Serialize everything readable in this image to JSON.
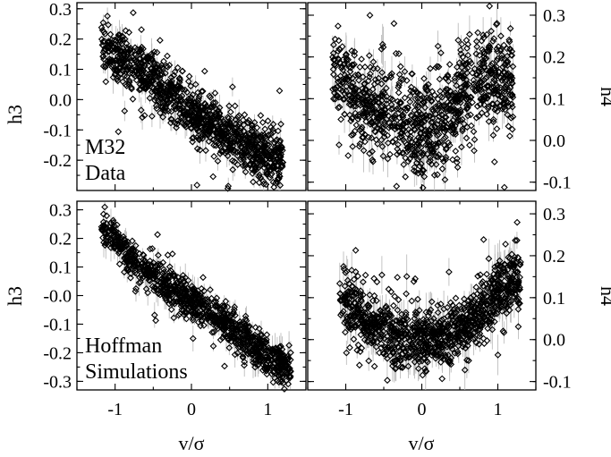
{
  "chart_data": [
    {
      "type": "scatter",
      "panel": "top-left",
      "xlim": [
        -1.5,
        1.5
      ],
      "ylim": [
        -0.3,
        0.32
      ],
      "ylabel": "h3",
      "xlabel": "",
      "yticks": [
        "0.3",
        "0.2",
        "0.1",
        "0.0",
        "-0.1",
        "-0.2"
      ],
      "xticks": [],
      "annotation": [
        "M32",
        "Data"
      ],
      "series": [
        {
          "trend": "h3 decreases linearly with v/sigma",
          "points": [
            [
              -1.1,
              0.17
            ],
            [
              -1.0,
              0.15
            ],
            [
              -0.9,
              0.13
            ],
            [
              -0.8,
              0.11
            ],
            [
              -0.7,
              0.1
            ],
            [
              -0.6,
              0.08
            ],
            [
              -0.5,
              0.06
            ],
            [
              -0.4,
              0.04
            ],
            [
              -0.3,
              0.02
            ],
            [
              -0.2,
              0.0
            ],
            [
              -0.1,
              -0.02
            ],
            [
              0.0,
              -0.04
            ],
            [
              0.1,
              -0.06
            ],
            [
              0.2,
              -0.08
            ],
            [
              0.3,
              -0.09
            ],
            [
              0.4,
              -0.11
            ],
            [
              0.5,
              -0.12
            ],
            [
              0.6,
              -0.13
            ],
            [
              0.7,
              -0.15
            ],
            [
              0.8,
              -0.16
            ],
            [
              0.9,
              -0.17
            ],
            [
              1.0,
              -0.18
            ],
            [
              1.1,
              -0.19
            ]
          ]
        }
      ]
    },
    {
      "type": "scatter",
      "panel": "top-right",
      "xlim": [
        -1.5,
        1.5
      ],
      "ylim": [
        -0.12,
        0.33
      ],
      "ylabel": "h4",
      "xlabel": "",
      "yticks": [
        "0.3",
        "0.2",
        "0.1",
        "0.0",
        "-0.1"
      ],
      "xticks": [],
      "series": [
        {
          "trend": "h4 shows a V shape, minimum near v/sigma = 0",
          "points": [
            [
              -1.1,
              0.15
            ],
            [
              -1.0,
              0.13
            ],
            [
              -0.9,
              0.11
            ],
            [
              -0.8,
              0.1
            ],
            [
              -0.7,
              0.09
            ],
            [
              -0.6,
              0.08
            ],
            [
              -0.5,
              0.07
            ],
            [
              -0.4,
              0.06
            ],
            [
              -0.3,
              0.05
            ],
            [
              -0.2,
              0.04
            ],
            [
              -0.1,
              0.035
            ],
            [
              0.0,
              0.03
            ],
            [
              0.1,
              0.04
            ],
            [
              0.2,
              0.05
            ],
            [
              0.3,
              0.07
            ],
            [
              0.4,
              0.09
            ],
            [
              0.5,
              0.11
            ],
            [
              0.6,
              0.13
            ],
            [
              0.7,
              0.14
            ],
            [
              0.8,
              0.15
            ],
            [
              0.9,
              0.15
            ],
            [
              1.0,
              0.15
            ],
            [
              1.1,
              0.14
            ]
          ]
        }
      ]
    },
    {
      "type": "scatter",
      "panel": "bottom-left",
      "xlim": [
        -1.5,
        1.5
      ],
      "ylim": [
        -0.33,
        0.33
      ],
      "ylabel": "h3",
      "xlabel": "v/σ",
      "yticks": [
        "0.3",
        "0.2",
        "0.1",
        "-0.0",
        "-0.1",
        "-0.2",
        "-0.3"
      ],
      "xticks": [
        "-1",
        "0",
        "1"
      ],
      "annotation": [
        "Hoffman",
        "Simulations"
      ],
      "series": [
        {
          "trend": "h3 decreases linearly with v/sigma",
          "points": [
            [
              -1.1,
              0.23
            ],
            [
              -1.0,
              0.19
            ],
            [
              -0.9,
              0.16
            ],
            [
              -0.8,
              0.13
            ],
            [
              -0.7,
              0.11
            ],
            [
              -0.6,
              0.09
            ],
            [
              -0.5,
              0.07
            ],
            [
              -0.4,
              0.05
            ],
            [
              -0.3,
              0.03
            ],
            [
              -0.2,
              0.01
            ],
            [
              -0.1,
              0.0
            ],
            [
              0.0,
              -0.02
            ],
            [
              0.1,
              -0.04
            ],
            [
              0.2,
              -0.05
            ],
            [
              0.3,
              -0.07
            ],
            [
              0.4,
              -0.09
            ],
            [
              0.5,
              -0.11
            ],
            [
              0.6,
              -0.13
            ],
            [
              0.7,
              -0.15
            ],
            [
              0.8,
              -0.17
            ],
            [
              0.9,
              -0.19
            ],
            [
              1.0,
              -0.21
            ],
            [
              1.2,
              -0.25
            ]
          ]
        }
      ]
    },
    {
      "type": "scatter",
      "panel": "bottom-right",
      "xlim": [
        -1.5,
        1.5
      ],
      "ylim": [
        -0.12,
        0.33
      ],
      "ylabel": "h4",
      "xlabel": "v/σ",
      "yticks": [
        "0.3",
        "0.2",
        "0.1",
        "0.0",
        "-0.1"
      ],
      "xticks": [
        "-1",
        "0",
        "1"
      ],
      "series": [
        {
          "trend": "h4 shows a U shape, minimum near v/sigma = 0",
          "points": [
            [
              -1.0,
              0.09
            ],
            [
              -0.9,
              0.07
            ],
            [
              -0.8,
              0.05
            ],
            [
              -0.7,
              0.04
            ],
            [
              -0.6,
              0.03
            ],
            [
              -0.5,
              0.02
            ],
            [
              -0.4,
              0.01
            ],
            [
              -0.3,
              0.005
            ],
            [
              -0.2,
              0.0
            ],
            [
              -0.1,
              0.0
            ],
            [
              0.0,
              0.0
            ],
            [
              0.1,
              0.0
            ],
            [
              0.2,
              0.005
            ],
            [
              0.3,
              0.01
            ],
            [
              0.4,
              0.02
            ],
            [
              0.5,
              0.03
            ],
            [
              0.6,
              0.04
            ],
            [
              0.7,
              0.06
            ],
            [
              0.8,
              0.07
            ],
            [
              0.9,
              0.09
            ],
            [
              1.0,
              0.11
            ],
            [
              1.2,
              0.14
            ]
          ]
        }
      ]
    }
  ]
}
